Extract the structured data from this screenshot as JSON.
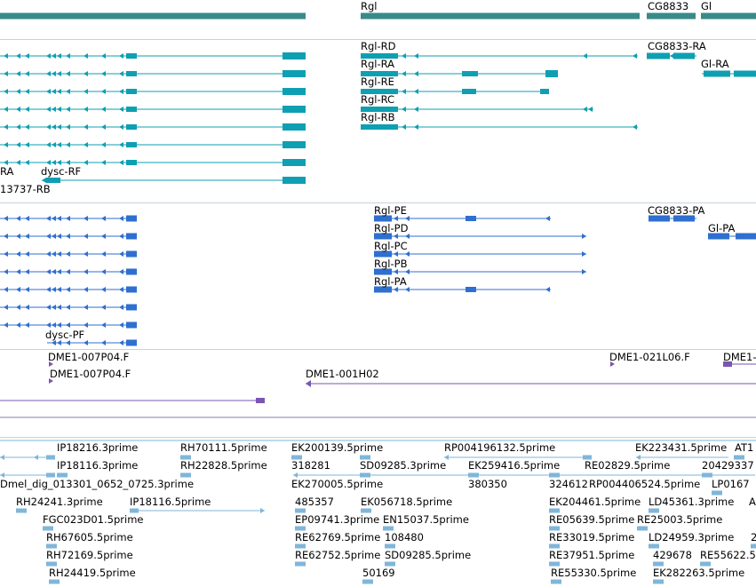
{
  "colors": {
    "gene": "#3a8a88",
    "transcript": "#0f9fb2",
    "protein": "#2f6fcf",
    "clone": "#7a56b0",
    "est": "#7fb6da",
    "separator": "#c8d2dc"
  },
  "gene_track": {
    "labels": {
      "rgl": "Rgl",
      "cg8833": "CG8833",
      "gl": "Gl"
    }
  },
  "transcript_track": {
    "labels": {
      "rgl_rd": "Rgl-RD",
      "rgl_ra": "Rgl-RA",
      "rgl_re": "Rgl-RE",
      "rgl_rc": "Rgl-RC",
      "rgl_rb": "Rgl-RB",
      "cg8833_ra": "CG8833-RA",
      "gl_ra": "Gl-RA",
      "ra_fragment": "RA",
      "dysc_rf": "dysc-RF",
      "cg13737_rb": "13737-RB"
    }
  },
  "protein_track": {
    "labels": {
      "rgl_pe": "Rgl-PE",
      "rgl_pd": "Rgl-PD",
      "rgl_pc": "Rgl-PC",
      "rgl_pb": "Rgl-PB",
      "rgl_pa": "Rgl-PA",
      "cg8833_pa": "CG8833-PA",
      "gl_pa": "Gl-PA",
      "dysc_pf": "dysc-PF"
    }
  },
  "clone_track": {
    "labels": {
      "c1": "DME1-007P04.F",
      "c2": "DME1-007P04.F",
      "c3": "DME1-001H02",
      "c4": "DME1-021L06.F",
      "c5": "DME1-"
    }
  },
  "est_track": {
    "labels": {
      "e01": "IP18216.3prime",
      "e02": "RH70111.5prime",
      "e03": "EK200139.5prime",
      "e04": "RP004196132.5prime",
      "e05": "EK223431.5prime",
      "e06": "AT1",
      "e07": "IP18116.3prime",
      "e08": "RH22828.5prime",
      "e09": "318281",
      "e10": "SD09285.3prime",
      "e11": "EK259416.5prime",
      "e12": "RE02829.5prime",
      "e13": "204293",
      "e14": "37",
      "e15": "Dmel_dig_013301_0652_0725.3prime",
      "e16": "EK270005.5prime",
      "e17": "380350",
      "e18": "324612",
      "e19": "RP004406524.5prime",
      "e20": "LP0167",
      "e21": "RH24241.3prime",
      "e22": "IP18116.5prime",
      "e23": "485357",
      "e24": "EK056718.5prime",
      "e25": "EK204461.5prime",
      "e26": "LD45361.3prime",
      "e27": "A",
      "e28": "FGC023D01.5prime",
      "e29": "EP09741.3prime",
      "e30": "EN15037.5prime",
      "e31": "RE05639.5prime",
      "e32": "RE25003.5prime",
      "e33": "RH67605.5prime",
      "e34": "RE62769.5prime",
      "e35": "108480",
      "e36": "RE33019.5prime",
      "e37": "LD24959.3prime",
      "e38": "2",
      "e39": "RH72169.5prime",
      "e40": "RE62752.5prime",
      "e41": "SD09285.5prime",
      "e42": "RE37951.5prime",
      "e43": "429678",
      "e44": "RE55622.5",
      "e45": "RH24419.5prime",
      "e46": "50169",
      "e47": "RE55330.5prime",
      "e48": "EK282263.5prime"
    }
  }
}
